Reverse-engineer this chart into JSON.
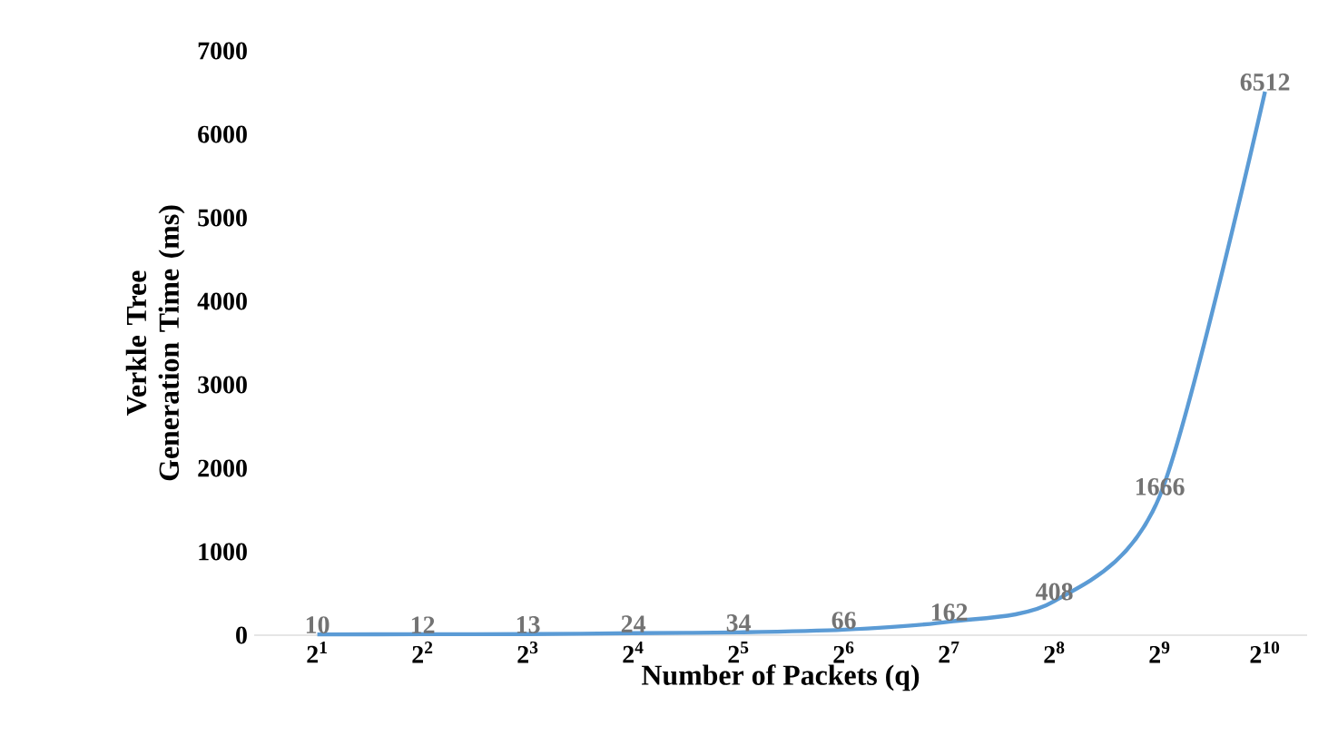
{
  "chart_data": {
    "type": "line",
    "xlabel": "Number of Packets (q)",
    "ylabel": "Verkle Tree Generation Time (ms)",
    "categories": [
      "2$^{1}$",
      "2$^{2}$",
      "2$^{3}$",
      "2$^{4}$",
      "2$^{5}$",
      "2$^{6}$",
      "2$^{7}$",
      "2$^{8}$",
      "2$^{9}$",
      "2$^{10}$"
    ],
    "values": [
      10,
      12,
      13,
      24,
      34,
      66,
      162,
      408,
      1666,
      6512
    ],
    "color": "#5b9bd5",
    "line_style": "solid",
    "ylim": [
      0,
      7000
    ],
    "yticks": [
      0,
      1000,
      2000,
      3000,
      4000,
      5000,
      6000,
      7000
    ],
    "data_labels": true
  }
}
